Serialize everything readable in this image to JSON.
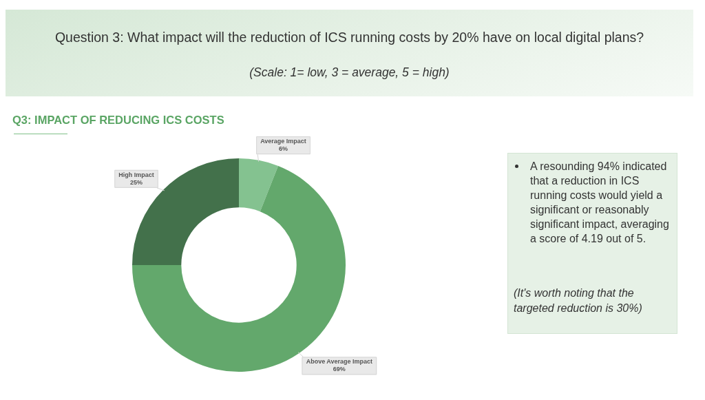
{
  "chart_data": {
    "type": "donut",
    "title": "Question 3: What impact will the reduction of ICS running costs by 20% have on local digital plans?",
    "subtitle": "(Scale: 1= low, 3 = average, 5 = high)",
    "categories": [
      "Average Impact",
      "Above Average Impact",
      "High Impact"
    ],
    "values": [
      6,
      69,
      25
    ],
    "value_labels": [
      "6%",
      "69%",
      "25%"
    ],
    "colors": [
      "#84c290",
      "#63a86c",
      "#43714b"
    ],
    "legend": false,
    "annotations": [
      "Q3: IMPACT OF REDUCING ICS COSTS",
      "A resounding 94% indicated that a reduction in ICS running costs would yield a significant or reasonably significant impact, averaging a score of 4.19 out of 5.",
      "(It's worth noting that the targeted reduction is 30%)"
    ]
  }
}
